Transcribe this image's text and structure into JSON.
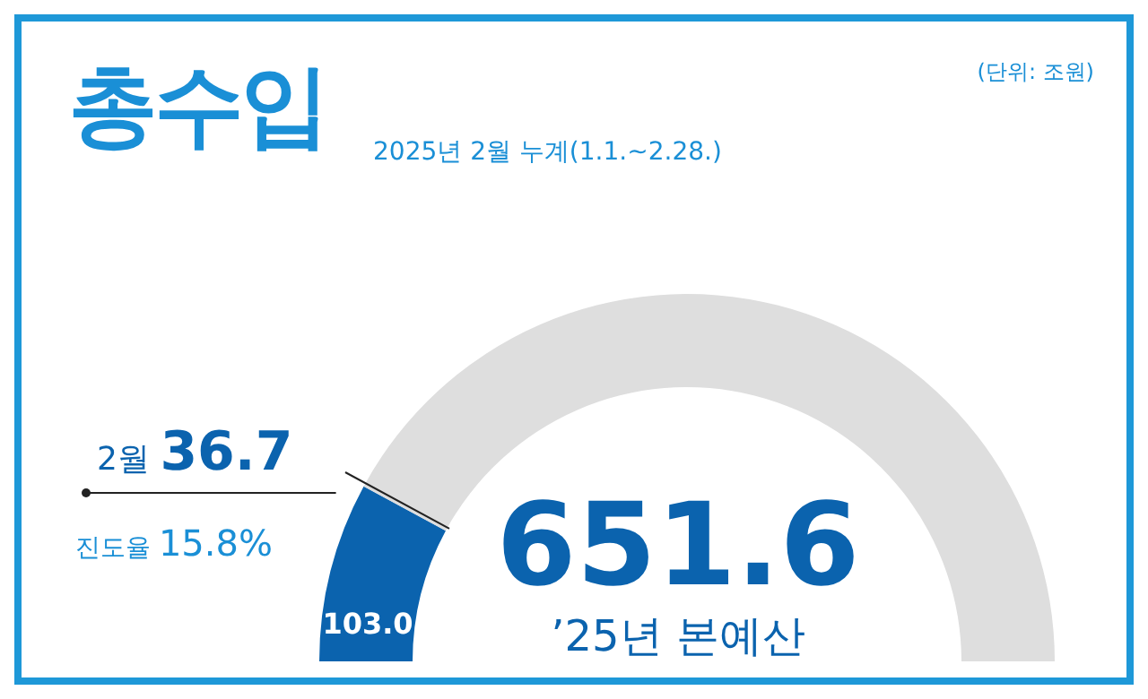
{
  "chart_data": {
    "type": "donut",
    "title": "총수입",
    "subtitle": "2025년 2월 누계(1.1.~2.28.)",
    "categories": [
      null,
      null
    ],
    "values": [
      103.0,
      548.6
    ],
    "colors": [
      "#0b63ae",
      "#dedede"
    ],
    "value_labels": [
      "103.0",
      null
    ],
    "annotations": [
      "(단위: 조원)",
      "2월 36.7",
      "진도율 15.8%",
      "651.6",
      "’25년 본예산"
    ]
  }
}
